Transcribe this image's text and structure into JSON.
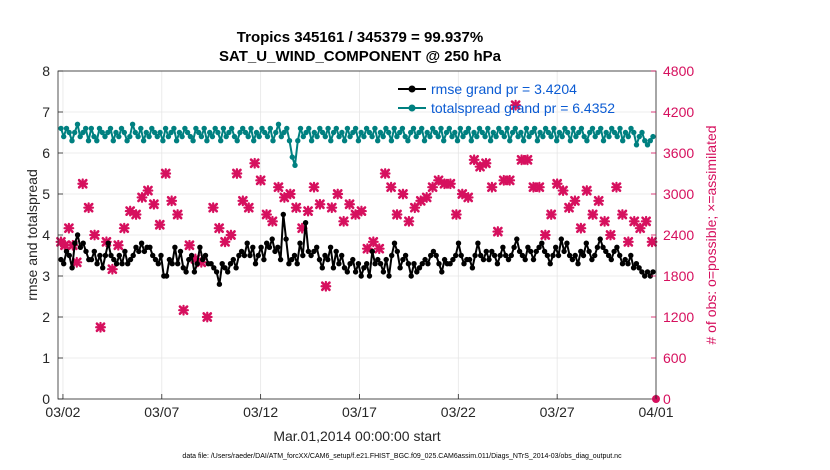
{
  "chart_data": {
    "type": "line",
    "title": "Tropics 345161 / 345379 = 99.937%",
    "subtitle": "SAT_U_WIND_COMPONENT @ 250 hPa",
    "xlabel": "Mar.01,2014 00:00:00 start",
    "ylabel": "rmse and totalspread",
    "y2label": "# of obs: o=possible; ×=assimilated",
    "footnote": "data file: /Users/raeder/DAI/ATM_forcXX/CAM6_setup/f.e21.FHIST_BGC.f09_025.CAM6assim.011/Diags_NTrS_2014-03/obs_diag_output.nc",
    "x_ticks": [
      "03/02",
      "03/07",
      "03/12",
      "03/17",
      "03/22",
      "03/27",
      "04/01"
    ],
    "x_tick_days": [
      1,
      6,
      11,
      16,
      21,
      26,
      31
    ],
    "xlim": [
      0.75,
      31.0
    ],
    "ylim": [
      0,
      8
    ],
    "y_ticks": [
      "0",
      "1",
      "2",
      "3",
      "4",
      "5",
      "6",
      "7",
      "8"
    ],
    "y2lim": [
      0,
      4800
    ],
    "y2_ticks": [
      "0",
      "600",
      "1200",
      "1800",
      "2400",
      "3000",
      "3600",
      "4200",
      "4800"
    ],
    "legend_position": "top-right",
    "colors": {
      "rmse": "#000000",
      "spread": "#008080",
      "obs": "#d6105e",
      "legend_text": "#0b5bd3"
    },
    "series": [
      {
        "name": "rmse grand pr = 3.4204",
        "axis": "left",
        "values": [
          3.4,
          3.3,
          3.6,
          3.5,
          3.2,
          3.8,
          4.0,
          3.7,
          3.8,
          3.6,
          3.4,
          3.4,
          3.6,
          3.3,
          3.5,
          3.2,
          3.5,
          3.8,
          3.5,
          3.4,
          3.3,
          3.5,
          3.3,
          3.6,
          3.3,
          3.4,
          3.5,
          3.7,
          3.6,
          3.8,
          3.6,
          3.7,
          3.7,
          3.5,
          3.4,
          3.3,
          3.5,
          3.0,
          3.0,
          3.4,
          3.3,
          3.7,
          3.3,
          3.6,
          3.2,
          3.1,
          3.4,
          3.5,
          3.1,
          3.3,
          3.7,
          3.4,
          3.5,
          3.3,
          3.3,
          3.2,
          3.1,
          2.8,
          3.3,
          3.2,
          3.1,
          3.3,
          3.4,
          3.2,
          3.5,
          3.6,
          3.5,
          3.8,
          3.5,
          3.7,
          3.3,
          3.5,
          3.7,
          3.4,
          3.8,
          3.7,
          3.9,
          3.6,
          3.7,
          3.4,
          4.5,
          3.9,
          3.3,
          3.4,
          3.5,
          3.3,
          3.8,
          3.5,
          4.3,
          3.6,
          3.5,
          3.6,
          3.7,
          3.4,
          3.2,
          3.5,
          3.4,
          3.7,
          3.2,
          3.6,
          3.3,
          3.5,
          3.2,
          3.1,
          3.3,
          3.4,
          3.1,
          3.3,
          3.0,
          3.2,
          3.3,
          3.0,
          3.6,
          3.3,
          3.4,
          3.3,
          3.1,
          3.4,
          3.0,
          3.5,
          3.8,
          3.6,
          3.2,
          3.4,
          3.5,
          3.3,
          3.0,
          3.3,
          3.1,
          3.2,
          3.3,
          3.4,
          3.3,
          3.5,
          3.6,
          3.5,
          3.3,
          3.1,
          3.4,
          3.3,
          3.3,
          3.4,
          3.5,
          3.8,
          3.5,
          3.3,
          3.4,
          3.4,
          3.2,
          3.5,
          3.8,
          3.5,
          3.4,
          3.6,
          3.4,
          3.6,
          3.5,
          3.3,
          3.5,
          3.7,
          3.5,
          3.4,
          3.5,
          3.7,
          3.9,
          3.6,
          3.5,
          3.4,
          3.7,
          3.6,
          3.4,
          3.6,
          3.7,
          3.8,
          3.6,
          3.5,
          3.3,
          3.5,
          3.7,
          3.5,
          3.9,
          3.6,
          3.8,
          3.5,
          3.4,
          3.5,
          3.3,
          3.6,
          3.5,
          3.8,
          3.6,
          3.4,
          3.5,
          3.7,
          3.9,
          3.7,
          3.6,
          3.5,
          3.4,
          3.6,
          3.7,
          3.5,
          3.3,
          3.4,
          3.3,
          3.5,
          3.2,
          3.3,
          3.2,
          3.1,
          3.0,
          3.1,
          3.0,
          3.1
        ]
      },
      {
        "name": "totalspread grand pr = 6.4352",
        "axis": "left",
        "values": [
          6.6,
          6.4,
          6.6,
          6.5,
          6.3,
          6.5,
          6.7,
          6.4,
          6.5,
          6.6,
          6.3,
          6.6,
          6.4,
          6.3,
          6.6,
          6.5,
          6.4,
          6.5,
          6.6,
          6.3,
          6.5,
          6.4,
          6.6,
          6.5,
          6.3,
          6.4,
          6.7,
          6.5,
          6.4,
          6.6,
          6.3,
          6.5,
          6.4,
          6.6,
          6.5,
          6.4,
          6.5,
          6.3,
          6.6,
          6.4,
          6.5,
          6.6,
          6.3,
          6.5,
          6.4,
          6.6,
          6.5,
          6.4,
          6.3,
          6.6,
          6.5,
          6.4,
          6.6,
          6.3,
          6.5,
          6.4,
          6.6,
          6.5,
          6.3,
          6.6,
          6.4,
          6.5,
          6.6,
          6.4,
          6.3,
          6.5,
          6.6,
          6.5,
          6.4,
          6.6,
          6.3,
          6.5,
          6.4,
          6.6,
          6.5,
          6.4,
          6.6,
          6.3,
          6.5,
          6.7,
          6.4,
          6.5,
          6.6,
          6.3,
          5.9,
          5.7,
          6.3,
          6.6,
          6.4,
          6.5,
          6.6,
          6.3,
          6.5,
          6.4,
          6.6,
          6.5,
          6.4,
          6.6,
          6.3,
          6.5,
          6.6,
          6.4,
          6.5,
          6.3,
          6.6,
          6.4,
          6.5,
          6.6,
          6.3,
          6.5,
          6.4,
          6.6,
          6.5,
          6.4,
          6.6,
          6.3,
          6.5,
          6.4,
          6.6,
          6.5,
          6.3,
          6.6,
          6.4,
          6.5,
          6.6,
          6.4,
          6.3,
          6.5,
          6.6,
          6.4,
          6.5,
          6.6,
          6.3,
          6.5,
          6.4,
          6.6,
          6.5,
          6.4,
          6.6,
          6.3,
          6.5,
          6.6,
          6.4,
          6.5,
          6.3,
          6.6,
          6.4,
          6.5,
          6.6,
          6.3,
          6.5,
          6.4,
          6.6,
          6.5,
          6.4,
          6.6,
          6.3,
          6.5,
          6.4,
          6.6,
          6.5,
          6.4,
          6.6,
          6.3,
          6.5,
          6.6,
          6.4,
          6.5,
          6.3,
          6.6,
          6.4,
          6.5,
          6.6,
          6.3,
          6.5,
          6.4,
          6.6,
          6.5,
          6.4,
          6.6,
          6.3,
          6.5,
          6.4,
          6.6,
          6.5,
          6.3,
          6.6,
          6.4,
          6.5,
          6.6,
          6.4,
          6.3,
          6.5,
          6.6,
          6.4,
          6.5,
          6.6,
          6.3,
          6.5,
          6.4,
          6.6,
          6.5,
          6.4,
          6.6,
          6.3,
          6.5,
          6.4,
          6.6,
          6.5,
          6.2,
          6.4,
          6.5,
          6.3,
          6.2,
          6.3,
          6.4
        ]
      },
      {
        "name": "# of obs",
        "axis": "right",
        "marker": "×",
        "x": [
          0.9,
          1.1,
          1.3,
          1.5,
          1.7,
          2.0,
          2.3,
          2.6,
          2.9,
          3.2,
          3.5,
          3.8,
          4.1,
          4.4,
          4.7,
          5.0,
          5.3,
          5.6,
          5.9,
          6.2,
          6.5,
          6.8,
          7.1,
          7.4,
          7.7,
          8.0,
          8.3,
          8.6,
          8.9,
          9.2,
          9.5,
          9.8,
          10.1,
          10.4,
          10.7,
          11.0,
          11.3,
          11.6,
          11.9,
          12.2,
          12.5,
          12.8,
          13.1,
          13.4,
          13.7,
          14.0,
          14.3,
          14.6,
          14.9,
          15.2,
          15.5,
          15.8,
          16.1,
          16.4,
          16.7,
          17.0,
          17.3,
          17.6,
          17.9,
          18.2,
          18.5,
          18.8,
          19.1,
          19.4,
          19.7,
          20.0,
          20.3,
          20.6,
          20.9,
          21.2,
          21.5,
          21.8,
          22.1,
          22.4,
          22.7,
          23.0,
          23.3,
          23.6,
          23.9,
          24.2,
          24.5,
          24.8,
          25.1,
          25.4,
          25.7,
          26.0,
          26.3,
          26.6,
          26.9,
          27.2,
          27.5,
          27.8,
          28.1,
          28.4,
          28.7,
          29.0,
          29.3,
          29.6,
          29.9,
          30.2,
          30.5,
          30.8
        ],
        "values": [
          2300,
          2250,
          2500,
          2250,
          2000,
          3150,
          2800,
          2400,
          1050,
          2300,
          1900,
          2250,
          2500,
          2750,
          2700,
          2950,
          3050,
          2850,
          2550,
          3300,
          2900,
          2700,
          1300,
          2250,
          2050,
          2000,
          1200,
          2800,
          2500,
          2300,
          2400,
          3300,
          2900,
          2800,
          3450,
          3200,
          2700,
          2600,
          3100,
          2950,
          3000,
          2800,
          2500,
          2750,
          3100,
          2850,
          1650,
          2800,
          3000,
          2600,
          2850,
          2700,
          2750,
          2200,
          2300,
          2200,
          3300,
          3100,
          2700,
          3000,
          2600,
          2800,
          2900,
          2950,
          3100,
          3200,
          3150,
          3150,
          2700,
          3000,
          2950,
          3500,
          3400,
          3450,
          3100,
          2450,
          3200,
          3200,
          4300,
          3500,
          3500,
          3100,
          3100,
          2400,
          2700,
          3150,
          3050,
          2800,
          2900,
          2500,
          3050,
          2700,
          2900,
          2600,
          2400,
          3100,
          2700,
          2300,
          2600,
          2500,
          2600,
          2300
        ]
      }
    ]
  }
}
